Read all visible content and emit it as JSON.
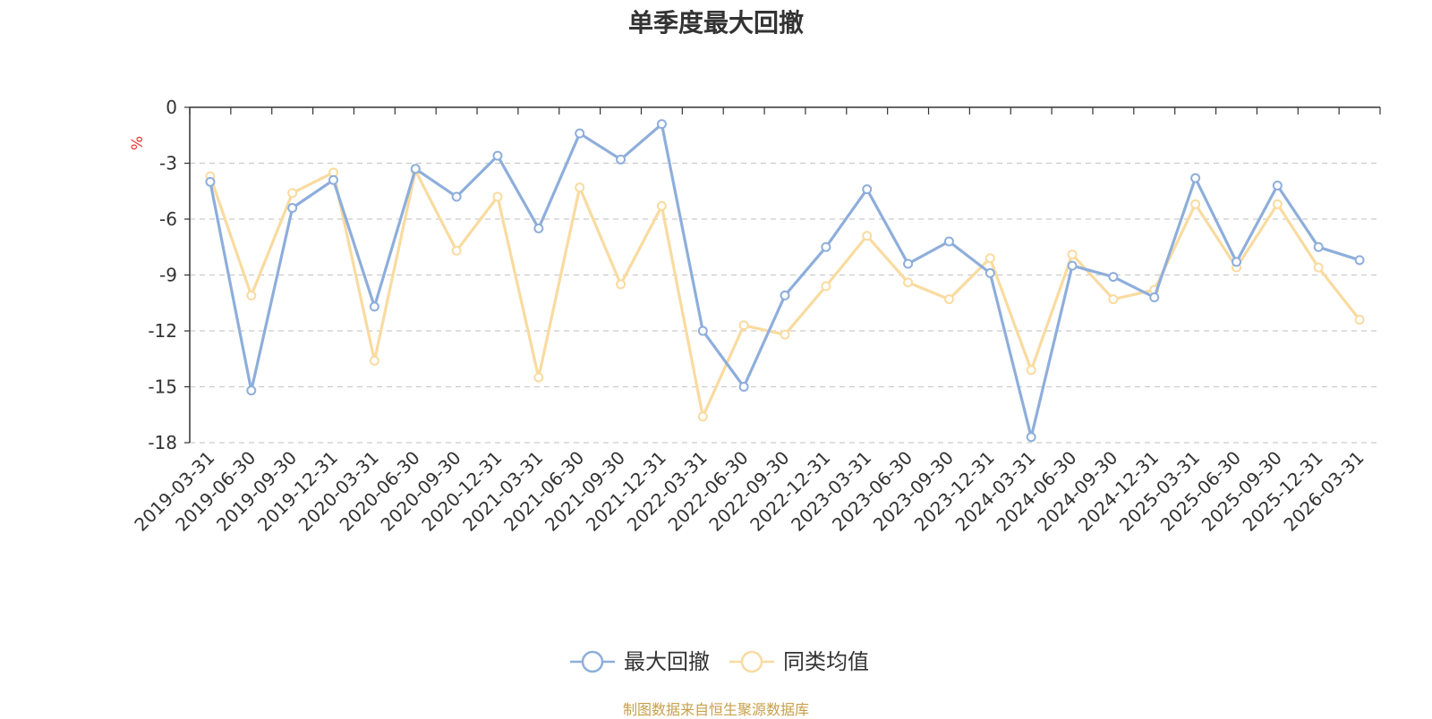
{
  "chart_data": {
    "type": "line",
    "title": "单季度最大回撤",
    "ylabel": "%",
    "ylim": [
      -18,
      0
    ],
    "yticks": [
      0,
      -3,
      -6,
      -9,
      -12,
      -15,
      -18
    ],
    "grid": true,
    "legend_position": "bottom-center",
    "categories": [
      "2019-03-31",
      "2019-06-30",
      "2019-09-30",
      "2019-12-31",
      "2020-03-31",
      "2020-06-30",
      "2020-09-30",
      "2020-12-31",
      "2021-03-31",
      "2021-06-30",
      "2021-09-30",
      "2021-12-31",
      "2022-03-31",
      "2022-06-30",
      "2022-09-30",
      "2022-12-31",
      "2023-03-31",
      "2023-06-30",
      "2023-09-30",
      "2023-12-31",
      "2024-03-31",
      "2024-06-30",
      "2024-09-30",
      "2024-12-31",
      "2025-03-31",
      "2025-06-30",
      "2025-09-30",
      "2025-12-31",
      "2026-03-31"
    ],
    "series": [
      {
        "name": "最大回撤",
        "color": "#8eaedb",
        "values": [
          -4.0,
          -15.2,
          -5.4,
          -3.9,
          -10.7,
          -3.3,
          -4.8,
          -2.6,
          -6.5,
          -1.4,
          -2.8,
          -0.9,
          -12.0,
          -15.0,
          -10.1,
          -7.5,
          -4.4,
          -8.4,
          -7.2,
          -8.9,
          -17.7,
          -8.5,
          -9.1,
          -10.2,
          -3.8,
          -8.3,
          -4.2,
          -7.5,
          -8.2
        ]
      },
      {
        "name": "同类均值",
        "color": "#f9dba0",
        "values": [
          -3.7,
          -10.1,
          -4.6,
          -3.5,
          -13.6,
          -3.4,
          -7.7,
          -4.8,
          -14.5,
          -4.3,
          -9.5,
          -5.3,
          -16.6,
          -11.7,
          -12.2,
          -9.6,
          -6.9,
          -9.4,
          -10.3,
          -8.1,
          -14.1,
          -7.9,
          -10.3,
          -9.8,
          -5.2,
          -8.6,
          -5.2,
          -8.6,
          -11.4
        ]
      }
    ]
  },
  "source_note": "制图数据来自恒生聚源数据库",
  "colors": {
    "axis": "#333333",
    "grid": "#cccccc",
    "ylabel": "#ee3333",
    "source": "#c8a048"
  }
}
